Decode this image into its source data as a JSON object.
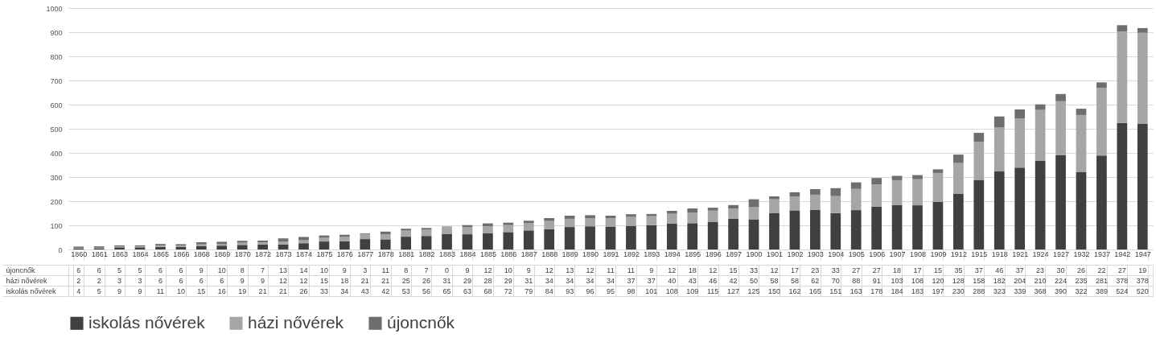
{
  "chart_data": {
    "type": "bar",
    "stacked": true,
    "categories": [
      "1860",
      "1861",
      "1863",
      "1864",
      "1865",
      "1866",
      "1868",
      "1869",
      "1870",
      "1872",
      "1873",
      "1874",
      "1875",
      "1876",
      "1877",
      "1878",
      "1881",
      "1882",
      "1883",
      "1884",
      "1885",
      "1886",
      "1887",
      "1888",
      "1889",
      "1890",
      "1891",
      "1892",
      "1893",
      "1894",
      "1895",
      "1896",
      "1897",
      "1900",
      "1901",
      "1902",
      "1903",
      "1904",
      "1905",
      "1906",
      "1907",
      "1908",
      "1909",
      "1912",
      "1915",
      "1918",
      "1921",
      "1924",
      "1927",
      "1932",
      "1937",
      "1942",
      "1947"
    ],
    "series": [
      {
        "name": "iskolás nővérek",
        "color": "#404040",
        "values": [
          4,
          5,
          9,
          9,
          11,
          10,
          15,
          16,
          19,
          21,
          21,
          26,
          33,
          34,
          43,
          42,
          53,
          56,
          65,
          63,
          68,
          72,
          79,
          84,
          93,
          96,
          95,
          98,
          101,
          108,
          109,
          115,
          127,
          125,
          150,
          162,
          165,
          151,
          163,
          178,
          184,
          183,
          197,
          230,
          288,
          323,
          339,
          368,
          390,
          322,
          389,
          524,
          520
        ]
      },
      {
        "name": "házi nővérek",
        "color": "#a6a6a6",
        "values": [
          2,
          2,
          3,
          3,
          6,
          6,
          6,
          6,
          9,
          9,
          12,
          12,
          15,
          18,
          21,
          21,
          25,
          26,
          31,
          29,
          28,
          29,
          31,
          34,
          34,
          34,
          34,
          37,
          37,
          40,
          43,
          46,
          42,
          50,
          58,
          58,
          62,
          70,
          88,
          91,
          103,
          108,
          120,
          128,
          158,
          182,
          204,
          210,
          224,
          235,
          281,
          378,
          378
        ]
      },
      {
        "name": "újoncnők",
        "color": "#6e6e6e",
        "values": [
          6,
          6,
          5,
          5,
          6,
          6,
          9,
          10,
          8,
          7,
          13,
          14,
          10,
          9,
          3,
          11,
          8,
          7,
          0,
          9,
          12,
          10,
          9,
          12,
          13,
          12,
          11,
          11,
          9,
          12,
          18,
          12,
          15,
          33,
          12,
          17,
          23,
          33,
          27,
          27,
          18,
          17,
          15,
          35,
          37,
          46,
          37,
          23,
          30,
          26,
          22,
          27,
          19
        ]
      }
    ],
    "ylim": [
      0,
      1000
    ],
    "yticks": [
      0,
      100,
      200,
      300,
      400,
      500,
      600,
      700,
      800,
      900,
      1000
    ],
    "grid": "y",
    "legend": "bottom",
    "data_labels": true
  }
}
